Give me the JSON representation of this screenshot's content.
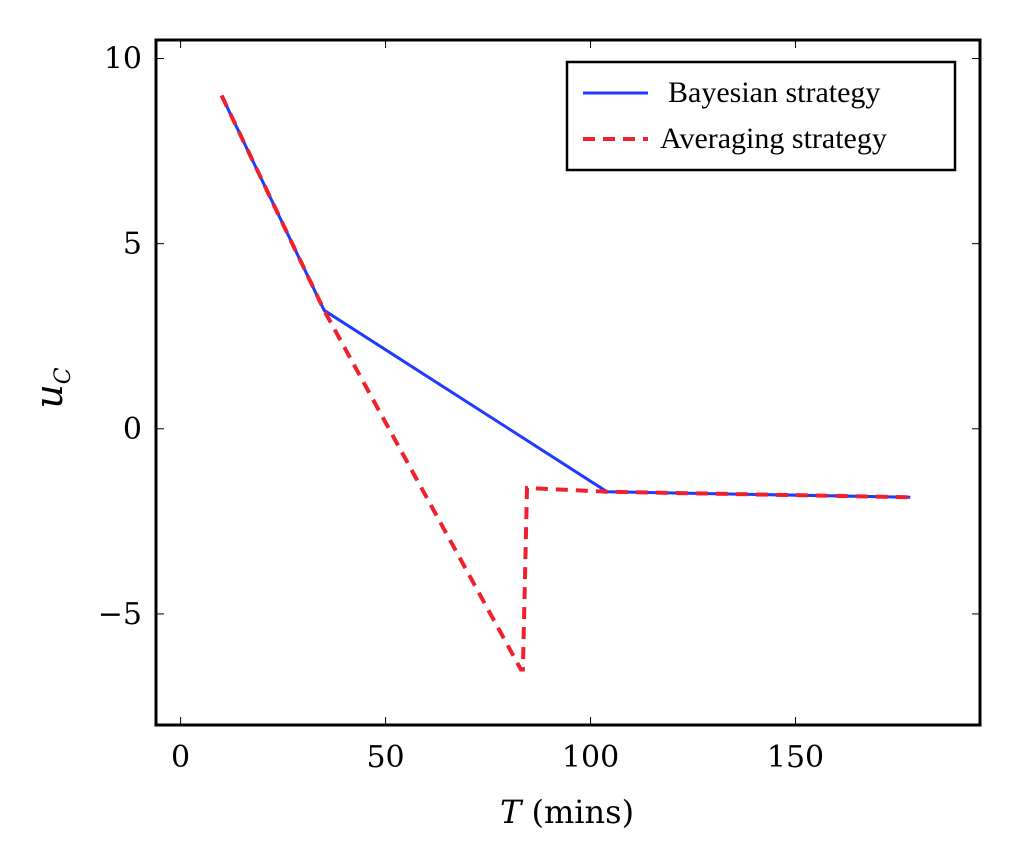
{
  "chart_data": {
    "type": "line",
    "xlabel_var": "T",
    "xlabel_unit": " (mins)",
    "ylabel_main": "u",
    "ylabel_sub": "C",
    "xlim": [
      -6,
      195
    ],
    "ylim": [
      -8,
      10.5
    ],
    "xticks": [
      0,
      50,
      100,
      150
    ],
    "xtick_labels": [
      "0",
      "50",
      "100",
      "150"
    ],
    "yticks": [
      -5,
      0,
      5,
      10
    ],
    "ytick_labels": [
      "−5",
      "0",
      "5",
      "10"
    ],
    "legend_position": "top-right",
    "series": [
      {
        "name": "Bayesian strategy",
        "color": "#1f3bff",
        "dash": "solid",
        "x": [
          10,
          35,
          104,
          178
        ],
        "y": [
          9.0,
          3.2,
          -1.7,
          -1.85
        ]
      },
      {
        "name": "Averaging strategy",
        "color": "#f0202e",
        "dash": "dashed",
        "x": [
          10,
          35,
          83,
          83.5,
          84.5,
          104,
          178
        ],
        "y": [
          9.0,
          3.2,
          -6.5,
          -6.5,
          -1.6,
          -1.7,
          -1.85
        ]
      }
    ]
  }
}
